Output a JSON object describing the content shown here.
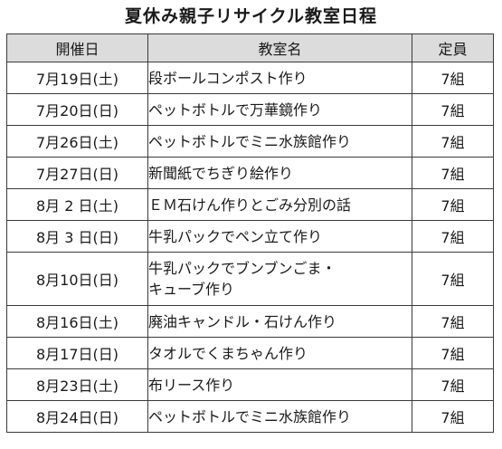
{
  "title": "夏休み親子リサイクル教室日程",
  "table": {
    "headers": [
      "開催日",
      "教室名",
      "定員"
    ],
    "rows": [
      {
        "date": "7月19日(土)",
        "class_lines": [
          "段ボールコンポスト作り"
        ],
        "capacity": "7組"
      },
      {
        "date": "7月20日(日)",
        "class_lines": [
          "ペットボトルで万華鏡作り"
        ],
        "capacity": "7組"
      },
      {
        "date": "7月26日(土)",
        "class_lines": [
          "ペットボトルでミニ水族館作り"
        ],
        "capacity": "7組"
      },
      {
        "date": "7月27日(日)",
        "class_lines": [
          "新聞紙でちぎり絵作り"
        ],
        "capacity": "7組"
      },
      {
        "date": "8月 2 日(土)",
        "class_lines": [
          "ＥＭ石けん作りとごみ分別の話"
        ],
        "capacity": "7組"
      },
      {
        "date": "8月 3 日(日)",
        "class_lines": [
          "牛乳パックでペン立て作り"
        ],
        "capacity": "7組"
      },
      {
        "date": "8月10日(日)",
        "class_lines": [
          "牛乳パックでブンブンごま・",
          "キューブ作り"
        ],
        "capacity": "7組"
      },
      {
        "date": "8月16日(土)",
        "class_lines": [
          "廃油キャンドル・石けん作り"
        ],
        "capacity": "7組"
      },
      {
        "date": "8月17日(日)",
        "class_lines": [
          "タオルでくまちゃん作り"
        ],
        "capacity": "7組"
      },
      {
        "date": "8月23日(土)",
        "class_lines": [
          "布リース作り"
        ],
        "capacity": "7組"
      },
      {
        "date": "8月24日(日)",
        "class_lines": [
          "ペットボトルでミニ水族館作り"
        ],
        "capacity": "7組"
      }
    ]
  }
}
